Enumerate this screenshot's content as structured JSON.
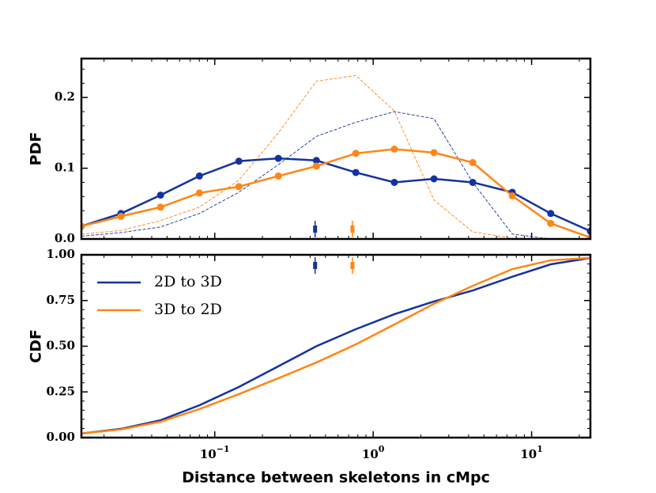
{
  "chart_data": [
    {
      "type": "line",
      "ylabel": "PDF",
      "xscale": "log",
      "xlim": [
        0.0144,
        23.5
      ],
      "xticks": [
        0.1,
        1,
        10
      ],
      "ylim": [
        0,
        0.255
      ],
      "yticks": [
        {
          "value": 0,
          "label": "0.0"
        },
        0.1,
        0.2
      ],
      "x": [
        0.0144,
        0.0256,
        0.0455,
        0.08,
        0.142,
        0.252,
        0.438,
        0.777,
        1.36,
        2.42,
        4.25,
        7.55,
        13.2,
        23.5
      ],
      "series": [
        {
          "color": "#1432a0",
          "style": "dashed",
          "values": [
            0.004,
            0.009,
            0.017,
            0.036,
            0.066,
            0.105,
            0.145,
            0.165,
            0.18,
            0.17,
            0.08,
            0.007,
            0,
            0
          ]
        },
        {
          "color": "#ff8614",
          "style": "dashed",
          "values": [
            0.007,
            0.012,
            0.026,
            0.045,
            0.083,
            0.15,
            0.223,
            0.231,
            0.181,
            0.055,
            0.01,
            0.001,
            0,
            0
          ]
        },
        {
          "color": "#1432a0",
          "style": "solid",
          "marker": true,
          "values": [
            0.018,
            0.036,
            0.062,
            0.089,
            0.11,
            0.114,
            0.111,
            0.094,
            0.08,
            0.085,
            0.08,
            0.066,
            0.036,
            0.011
          ]
        },
        {
          "color": "#ff8614",
          "style": "solid",
          "marker": true,
          "values": [
            0.018,
            0.032,
            0.045,
            0.065,
            0.074,
            0.089,
            0.103,
            0.121,
            0.127,
            0.122,
            0.108,
            0.061,
            0.022,
            0.002
          ]
        }
      ],
      "median_markers": [
        {
          "x": 0.43,
          "color": "#1432a0"
        },
        {
          "x": 0.74,
          "color": "#ff8614"
        }
      ]
    },
    {
      "type": "line",
      "ylabel": "CDF",
      "xlabel": "Distance between skeletons in cMpc",
      "xscale": "log",
      "legend": "upper left",
      "xlim": [
        0.0144,
        23.5
      ],
      "xticks": [
        {
          "value": 0.1,
          "label": "10",
          "exponent": "−1"
        },
        {
          "value": 1,
          "label": "10",
          "exponent": "0"
        },
        {
          "value": 10,
          "label": "10",
          "exponent": "1"
        }
      ],
      "ylim": [
        0,
        1
      ],
      "yticks": [
        {
          "value": 0,
          "label": "0.00"
        },
        0.25,
        {
          "value": 0.5,
          "label": "0.50"
        },
        0.75,
        {
          "value": 1,
          "label": "1.00"
        }
      ],
      "x": [
        0.0144,
        0.0256,
        0.0455,
        0.08,
        0.142,
        0.252,
        0.438,
        0.777,
        1.36,
        2.42,
        4.25,
        7.55,
        13.2,
        23.5
      ],
      "series": [
        {
          "name": "2D to 3D",
          "color": "#1432a0",
          "values": [
            0.022,
            0.048,
            0.095,
            0.177,
            0.277,
            0.39,
            0.5,
            0.593,
            0.675,
            0.745,
            0.805,
            0.88,
            0.948,
            0.983
          ]
        },
        {
          "name": "3D to 2D",
          "color": "#ff8614",
          "values": [
            0.022,
            0.045,
            0.087,
            0.156,
            0.238,
            0.325,
            0.411,
            0.51,
            0.619,
            0.732,
            0.83,
            0.922,
            0.97,
            0.983
          ]
        }
      ]
    }
  ]
}
